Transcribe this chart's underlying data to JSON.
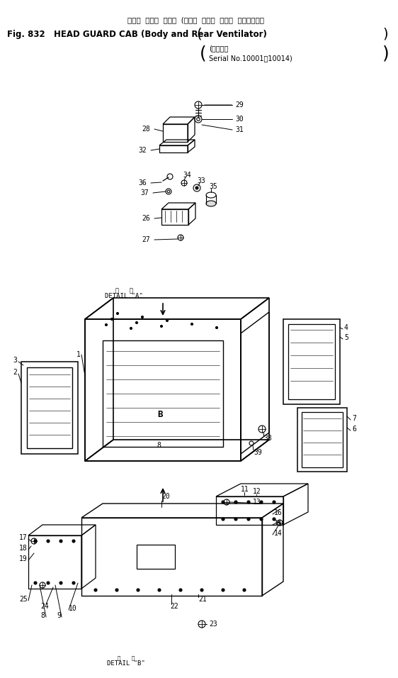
{
  "title_line1": "ヘッド  ガード  キャブ  (ボデー  および  リヤー  ベンチレータ",
  "title_line2": "Fig. 832   HEAD GUARD CAB (Body and Rear Ventilator)",
  "title_line3": "(適用号機",
  "title_line4": "Serial No.10001－10014)",
  "detail_a": "DETAIL \"A\"",
  "detail_b": "DETAIL \"B\"",
  "bg_color": "#ffffff",
  "line_color": "#000000",
  "text_color": "#000000",
  "figsize": [
    5.62,
    9.56
  ],
  "dpi": 100
}
